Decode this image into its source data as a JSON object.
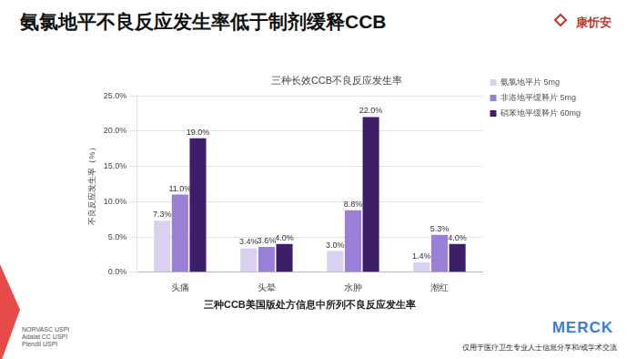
{
  "header": {
    "title": "氨氯地平不良反应发生率低于制剂缓释CCB",
    "logo": "康忻安"
  },
  "chart_data": {
    "type": "bar",
    "title": "三种长效CCB不良反应发生率",
    "x_label": "三种CCB美国版处方信息中所列不良反应发生率",
    "y_label": "不良反应发生率（%）",
    "categories": [
      "头痛",
      "头晕",
      "水肿",
      "潮红"
    ],
    "series": [
      {
        "name": "氨氯地平片 5mg",
        "color": "#d9d1ef",
        "values": [
          7.3,
          3.4,
          3.0,
          1.4
        ],
        "value_labels": [
          "7.3%",
          "3.4%",
          "3.0%",
          "1.4%"
        ]
      },
      {
        "name": "非洛地平缓释片 5mg",
        "color": "#9a7fd6",
        "values": [
          11.0,
          3.6,
          8.8,
          5.3
        ],
        "value_labels": [
          "11.0%",
          "3.6%",
          "8.8%",
          "5.3%"
        ]
      },
      {
        "name": "硝苯地平缓释片 60mg",
        "color": "#3d1e68",
        "values": [
          19.0,
          4.0,
          22.0,
          4.0
        ],
        "value_labels": [
          "19.0%",
          "4.0%",
          "22.0%",
          "4.0%"
        ]
      }
    ],
    "ylim": [
      0,
      25
    ],
    "yticks": [
      {
        "value": 0,
        "label": "0.0%"
      },
      {
        "value": 5,
        "label": "5.0%"
      },
      {
        "value": 10,
        "label": "10.0%"
      },
      {
        "value": 15,
        "label": "15.0%"
      },
      {
        "value": 20,
        "label": "20.0%"
      },
      {
        "value": 25,
        "label": "25.0%"
      }
    ],
    "grid": true,
    "legend": "right",
    "data_labels": true
  },
  "footnotes": [
    "NORVASC USPI",
    "Adalat CC USPI",
    "Plendil USPI"
  ],
  "footer": {
    "brand": "MERCK",
    "note": "仅用于医疗卫生专业人士信息分享和/或学术交流"
  }
}
